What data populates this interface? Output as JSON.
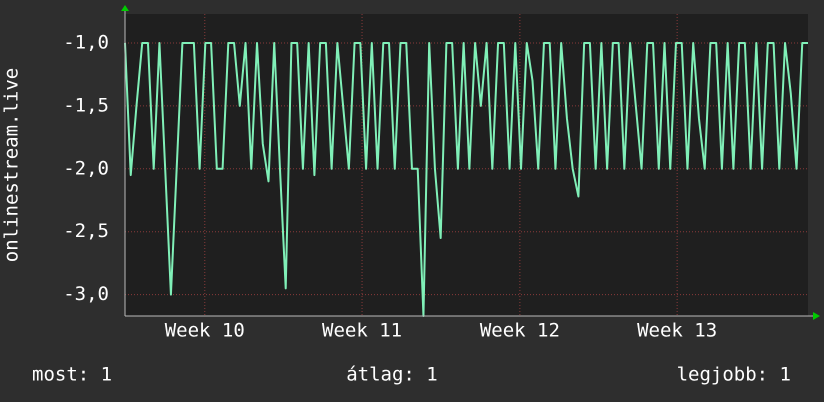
{
  "chart_data": {
    "type": "line",
    "ylabel": "onlinestream.live",
    "color": "#80f0b8",
    "grid": true,
    "x": [
      0,
      1,
      2,
      3,
      4,
      5,
      6,
      7,
      8,
      9,
      10,
      11,
      12,
      13,
      14,
      15,
      16,
      17,
      18,
      19,
      20,
      21,
      22,
      23,
      24,
      25,
      26,
      27,
      28,
      29,
      30,
      31,
      32,
      33,
      34,
      35,
      36,
      37,
      38,
      39,
      40,
      41,
      42,
      43,
      44,
      45,
      46,
      47,
      48,
      49,
      50,
      51,
      52,
      53,
      54,
      55,
      56,
      57,
      58,
      59,
      60,
      61,
      62,
      63,
      64,
      65,
      66,
      67,
      68,
      69,
      70,
      71,
      72,
      73,
      74,
      75,
      76,
      77,
      78,
      79,
      80,
      81,
      82,
      83,
      84,
      85,
      86,
      87,
      88,
      89,
      90,
      91,
      92,
      93,
      94,
      95,
      96,
      97,
      98,
      99,
      100,
      101,
      102,
      103,
      104,
      105,
      106,
      107,
      108,
      109,
      110,
      111,
      112,
      113,
      114,
      115,
      116,
      117,
      118,
      119
    ],
    "values": [
      -1,
      -2.05,
      -1.5,
      -1,
      -1,
      -2,
      -1,
      -2,
      -3.0,
      -2,
      -1,
      -1,
      -1,
      -2,
      -1,
      -1,
      -2,
      -2,
      -1,
      -1,
      -1.5,
      -1,
      -2,
      -1,
      -1.8,
      -2.1,
      -1,
      -2,
      -2.95,
      -1,
      -1,
      -2,
      -1,
      -2.05,
      -1,
      -1,
      -2,
      -1,
      -1.5,
      -2,
      -1,
      -1,
      -2,
      -1,
      -2,
      -1,
      -1,
      -2,
      -1,
      -1,
      -2,
      -2,
      -3.17,
      -1,
      -2,
      -2.55,
      -1,
      -1,
      -2,
      -1,
      -2,
      -1,
      -1.5,
      -1,
      -2,
      -1,
      -1,
      -2,
      -1,
      -2,
      -1,
      -1.3,
      -2,
      -1,
      -1,
      -2,
      -1,
      -1.6,
      -2,
      -2.22,
      -1,
      -1,
      -2,
      -1,
      -2,
      -1,
      -1,
      -2,
      -1,
      -1.5,
      -2,
      -1,
      -1,
      -2,
      -1,
      -2,
      -1,
      -1,
      -2,
      -1,
      -1.6,
      -2,
      -1,
      -1,
      -2,
      -1,
      -2,
      -1,
      -1,
      -2,
      -1,
      -2,
      -1,
      -1,
      -2,
      -1,
      -1.4,
      -2,
      -1,
      -1
    ],
    "xlim": [
      0,
      119
    ],
    "xticks": [
      {
        "value": 13.9,
        "label": "Week 10"
      },
      {
        "value": 41.3,
        "label": "Week 11"
      },
      {
        "value": 68.8,
        "label": "Week 12"
      },
      {
        "value": 96.2,
        "label": "Week 13"
      }
    ],
    "ylim": [
      -3.17,
      -0.77
    ],
    "yticks": [
      {
        "value": -3.0,
        "label": "-3,0"
      },
      {
        "value": -2.5,
        "label": "-2,5"
      },
      {
        "value": -2.0,
        "label": "-2,0"
      },
      {
        "value": -1.5,
        "label": "-1,5"
      },
      {
        "value": -1.0,
        "label": "-1,0"
      }
    ],
    "stats": [
      "most: 1",
      "átlag: 1",
      "legjobb: 1"
    ]
  }
}
